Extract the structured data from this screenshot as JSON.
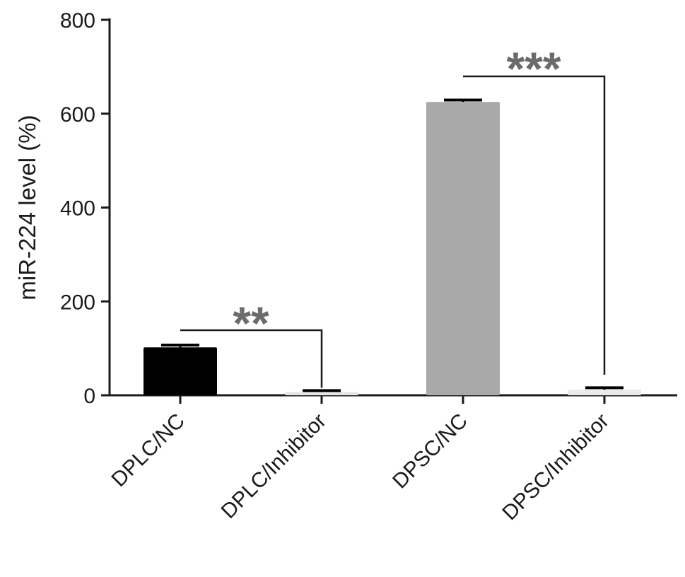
{
  "chart_data": {
    "type": "bar",
    "categories": [
      "DPLC/NC",
      "DPLC/Inhibitor",
      "DPSC/NC",
      "DPSC/Inhibitor"
    ],
    "values": [
      102,
      7,
      625,
      12
    ],
    "errors": [
      5,
      3,
      4,
      4
    ],
    "colors": [
      "#000000",
      "#e6e6e6",
      "#a9a9a9",
      "#ebebeb"
    ],
    "ylabel": "miR-224 level (%)",
    "xlabel": "",
    "title": "",
    "ylim": [
      0,
      800
    ],
    "yticks": [
      0,
      200,
      400,
      600,
      800
    ],
    "grid": false,
    "significance": [
      {
        "from": 0,
        "to": 1,
        "label": "**"
      },
      {
        "from": 2,
        "to": 3,
        "label": "***"
      }
    ]
  }
}
